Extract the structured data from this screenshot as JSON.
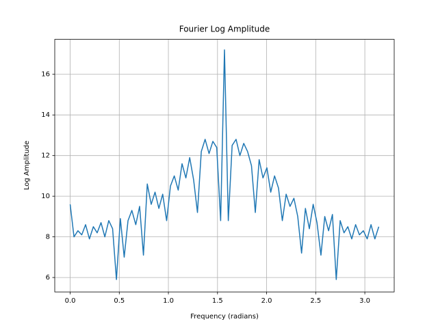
{
  "chart_data": {
    "type": "line",
    "title": "Fourier Log Amplitude",
    "xlabel": "Frequency (radians)",
    "ylabel": "Log Amplitude",
    "x": [
      0.0,
      0.039,
      0.079,
      0.118,
      0.157,
      0.196,
      0.236,
      0.275,
      0.314,
      0.353,
      0.393,
      0.432,
      0.471,
      0.511,
      0.55,
      0.589,
      0.628,
      0.668,
      0.707,
      0.746,
      0.785,
      0.825,
      0.864,
      0.903,
      0.942,
      0.982,
      1.021,
      1.06,
      1.1,
      1.139,
      1.178,
      1.217,
      1.257,
      1.296,
      1.335,
      1.374,
      1.414,
      1.453,
      1.492,
      1.532,
      1.571,
      1.61,
      1.649,
      1.689,
      1.728,
      1.767,
      1.806,
      1.846,
      1.885,
      1.924,
      1.963,
      2.003,
      2.042,
      2.081,
      2.121,
      2.16,
      2.199,
      2.238,
      2.278,
      2.317,
      2.356,
      2.395,
      2.435,
      2.474,
      2.513,
      2.553,
      2.592,
      2.631,
      2.67,
      2.709,
      2.749,
      2.788,
      2.827,
      2.867,
      2.906,
      2.945,
      2.985,
      3.024,
      3.063,
      3.102,
      3.142
    ],
    "series": [
      {
        "name": "log amplitude",
        "color": "#1f77b4",
        "values": [
          9.6,
          8.0,
          8.3,
          8.1,
          8.6,
          7.9,
          8.5,
          8.2,
          8.7,
          8.0,
          8.8,
          8.4,
          5.9,
          8.9,
          7.0,
          8.8,
          9.3,
          8.6,
          9.5,
          7.1,
          10.6,
          9.6,
          10.2,
          9.4,
          10.1,
          8.8,
          10.5,
          11.0,
          10.3,
          11.6,
          10.9,
          11.9,
          10.8,
          9.2,
          12.2,
          12.8,
          12.1,
          12.7,
          12.4,
          8.8,
          17.2,
          8.8,
          12.5,
          12.8,
          12.0,
          12.6,
          12.2,
          11.5,
          9.2,
          11.8,
          10.9,
          11.4,
          10.2,
          11.0,
          10.4,
          8.8,
          10.1,
          9.5,
          9.9,
          9.0,
          7.2,
          9.4,
          8.4,
          9.6,
          8.7,
          7.1,
          9.0,
          8.3,
          9.1,
          5.9,
          8.8,
          8.2,
          8.5,
          7.9,
          8.6,
          8.1,
          8.3,
          7.9,
          8.6,
          7.9,
          8.5
        ]
      }
    ],
    "xlim": [
      -0.157,
      3.299
    ],
    "ylim": [
      5.29,
      17.72
    ],
    "xticks": [
      {
        "value": 0,
        "label": "0.0"
      },
      0.5,
      {
        "value": 1,
        "label": "1.0"
      },
      1.5,
      {
        "value": 2,
        "label": "2.0"
      },
      2.5,
      {
        "value": 3,
        "label": "3.0"
      }
    ],
    "yticks": [
      6,
      8,
      10,
      12,
      14,
      16
    ],
    "grid": true
  }
}
